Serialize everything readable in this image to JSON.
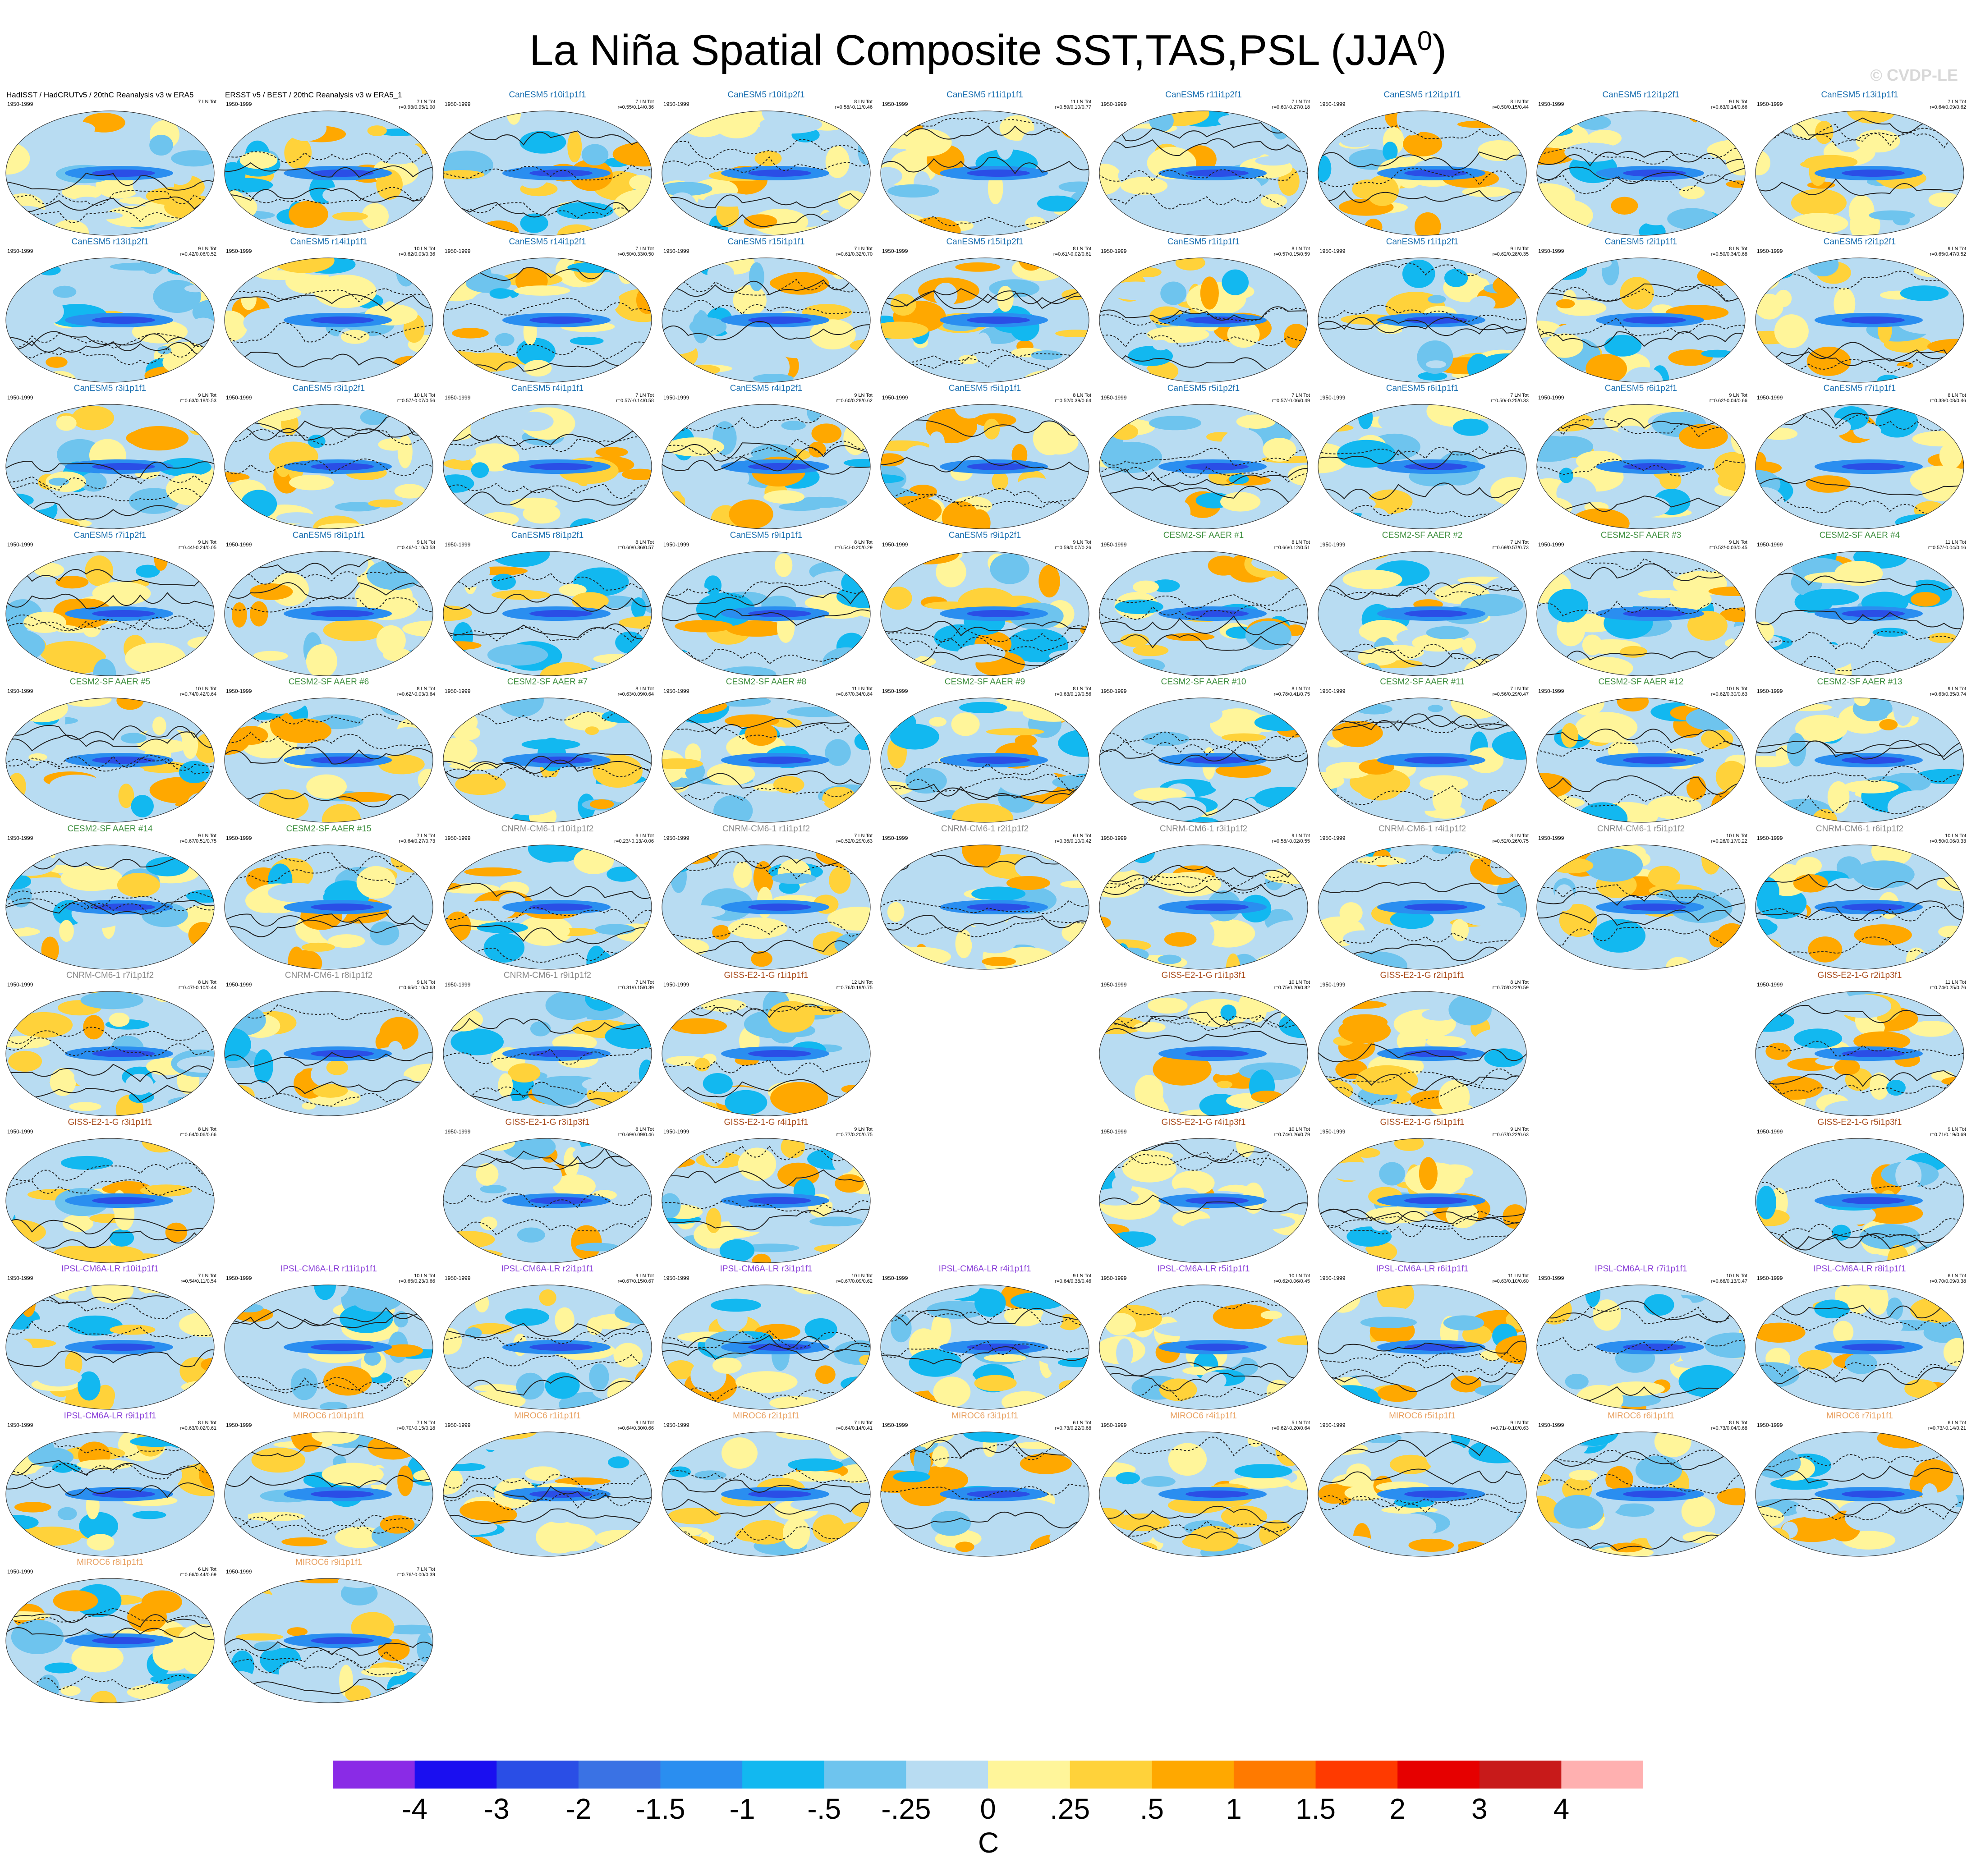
{
  "title": {
    "main": "La Niña Spatial Composite SST,TAS,PSL (JJA",
    "sup": "0",
    "close": ")"
  },
  "watermark": "© CVDP-LE",
  "colors": {
    "obs": "#000000",
    "CanESM5": "#1a6fb0",
    "CESM2-SF AAER": "#3f8f3f",
    "CNRM-CM6-1": "#8a8a8a",
    "GISS-E2-1-G": "#a84a1a",
    "IPSL-CM6A-LR": "#8a40d8",
    "MIROC6": "#e8a060"
  },
  "panels": [
    {
      "title": "HadISST / HadCRUTv5 / 20thC Reanalysis v3 w ERA5",
      "model": "obs",
      "years": "1950-1999",
      "count": "7 LN Tot",
      "stats": ""
    },
    {
      "title": "ERSST v5 / BEST / 20thC Reanalysis v3 w ERA5_1",
      "model": "obs",
      "years": "1950-1999",
      "count": "7 LN Tot",
      "stats": "r=0.93/0.95/1.00"
    },
    {
      "title": "CanESM5 r10i1p1f1",
      "model": "CanESM5",
      "years": "1950-1999",
      "count": "7 LN Tot",
      "stats": "r=0.55/0.14/0.36"
    },
    {
      "title": "CanESM5 r10i1p2f1",
      "model": "CanESM5",
      "years": "1950-1999",
      "count": "8 LN Tot",
      "stats": "r=0.58/-0.11/0.46"
    },
    {
      "title": "CanESM5 r11i1p1f1",
      "model": "CanESM5",
      "years": "1950-1999",
      "count": "11 LN Tot",
      "stats": "r=0.59/0.10/0.77"
    },
    {
      "title": "CanESM5 r11i1p2f1",
      "model": "CanESM5",
      "years": "1950-1999",
      "count": "7 LN Tot",
      "stats": "r=0.60/-0.27/0.18"
    },
    {
      "title": "CanESM5 r12i1p1f1",
      "model": "CanESM5",
      "years": "1950-1999",
      "count": "8 LN Tot",
      "stats": "r=0.50/0.15/0.44"
    },
    {
      "title": "CanESM5 r12i1p2f1",
      "model": "CanESM5",
      "years": "1950-1999",
      "count": "9 LN Tot",
      "stats": "r=0.63/0.14/0.66"
    },
    {
      "title": "CanESM5 r13i1p1f1",
      "model": "CanESM5",
      "years": "1950-1999",
      "count": "7 LN Tot",
      "stats": "r=0.64/0.09/0.62"
    },
    {
      "title": "CanESM5 r13i1p2f1",
      "model": "CanESM5",
      "years": "1950-1999",
      "count": "9 LN Tot",
      "stats": "r=0.42/0.06/0.52"
    },
    {
      "title": "CanESM5 r14i1p1f1",
      "model": "CanESM5",
      "years": "1950-1999",
      "count": "10 LN Tot",
      "stats": "r=0.62/0.03/0.36"
    },
    {
      "title": "CanESM5 r14i1p2f1",
      "model": "CanESM5",
      "years": "1950-1999",
      "count": "7 LN Tot",
      "stats": "r=0.50/0.33/0.50"
    },
    {
      "title": "CanESM5 r15i1p1f1",
      "model": "CanESM5",
      "years": "1950-1999",
      "count": "7 LN Tot",
      "stats": "r=0.61/0.32/0.70"
    },
    {
      "title": "CanESM5 r15i1p2f1",
      "model": "CanESM5",
      "years": "1950-1999",
      "count": "8 LN Tot",
      "stats": "r=0.61/-0.02/0.61"
    },
    {
      "title": "CanESM5 r1i1p1f1",
      "model": "CanESM5",
      "years": "1950-1999",
      "count": "8 LN Tot",
      "stats": "r=0.57/0.15/0.59"
    },
    {
      "title": "CanESM5 r1i1p2f1",
      "model": "CanESM5",
      "years": "1950-1999",
      "count": "9 LN Tot",
      "stats": "r=0.62/0.28/0.35"
    },
    {
      "title": "CanESM5 r2i1p1f1",
      "model": "CanESM5",
      "years": "1950-1999",
      "count": "8 LN Tot",
      "stats": "r=0.50/0.34/0.68"
    },
    {
      "title": "CanESM5 r2i1p2f1",
      "model": "CanESM5",
      "years": "1950-1999",
      "count": "9 LN Tot",
      "stats": "r=0.65/0.47/0.52"
    },
    {
      "title": "CanESM5 r3i1p1f1",
      "model": "CanESM5",
      "years": "1950-1999",
      "count": "9 LN Tot",
      "stats": "r=0.63/0.18/0.53"
    },
    {
      "title": "CanESM5 r3i1p2f1",
      "model": "CanESM5",
      "years": "1950-1999",
      "count": "10 LN Tot",
      "stats": "r=0.57/-0.07/0.56"
    },
    {
      "title": "CanESM5 r4i1p1f1",
      "model": "CanESM5",
      "years": "1950-1999",
      "count": "7 LN Tot",
      "stats": "r=0.57/-0.14/0.58"
    },
    {
      "title": "CanESM5 r4i1p2f1",
      "model": "CanESM5",
      "years": "1950-1999",
      "count": "9 LN Tot",
      "stats": "r=0.60/0.28/0.62"
    },
    {
      "title": "CanESM5 r5i1p1f1",
      "model": "CanESM5",
      "years": "1950-1999",
      "count": "8 LN Tot",
      "stats": "r=0.52/0.39/0.64"
    },
    {
      "title": "CanESM5 r5i1p2f1",
      "model": "CanESM5",
      "years": "1950-1999",
      "count": "7 LN Tot",
      "stats": "r=0.57/-0.06/0.49"
    },
    {
      "title": "CanESM5 r6i1p1f1",
      "model": "CanESM5",
      "years": "1950-1999",
      "count": "7 LN Tot",
      "stats": "r=0.50/-0.25/0.33"
    },
    {
      "title": "CanESM5 r6i1p2f1",
      "model": "CanESM5",
      "years": "1950-1999",
      "count": "9 LN Tot",
      "stats": "r=0.62/-0.04/0.66"
    },
    {
      "title": "CanESM5 r7i1p1f1",
      "model": "CanESM5",
      "years": "1950-1999",
      "count": "8 LN Tot",
      "stats": "r=0.38/0.08/0.46"
    },
    {
      "title": "CanESM5 r7i1p2f1",
      "model": "CanESM5",
      "years": "1950-1999",
      "count": "9 LN Tot",
      "stats": "r=0.44/-0.24/0.05"
    },
    {
      "title": "CanESM5 r8i1p1f1",
      "model": "CanESM5",
      "years": "1950-1999",
      "count": "9 LN Tot",
      "stats": "r=0.46/-0.10/0.58"
    },
    {
      "title": "CanESM5 r8i1p2f1",
      "model": "CanESM5",
      "years": "1950-1999",
      "count": "8 LN Tot",
      "stats": "r=0.60/0.36/0.57"
    },
    {
      "title": "CanESM5 r9i1p1f1",
      "model": "CanESM5",
      "years": "1950-1999",
      "count": "8 LN Tot",
      "stats": "r=0.54/-0.20/0.29"
    },
    {
      "title": "CanESM5 r9i1p2f1",
      "model": "CanESM5",
      "years": "1950-1999",
      "count": "9 LN Tot",
      "stats": "r=0.59/0.07/0.26"
    },
    {
      "title": "CESM2-SF AAER #1",
      "model": "CESM2-SF AAER",
      "years": "1950-1999",
      "count": "8 LN Tot",
      "stats": "r=0.66/0.12/0.51"
    },
    {
      "title": "CESM2-SF AAER #2",
      "model": "CESM2-SF AAER",
      "years": "1950-1999",
      "count": "7 LN Tot",
      "stats": "r=0.69/0.57/0.73"
    },
    {
      "title": "CESM2-SF AAER #3",
      "model": "CESM2-SF AAER",
      "years": "1950-1999",
      "count": "9 LN Tot",
      "stats": "r=0.52/-0.03/0.45"
    },
    {
      "title": "CESM2-SF AAER #4",
      "model": "CESM2-SF AAER",
      "years": "1950-1999",
      "count": "11 LN Tot",
      "stats": "r=0.57/-0.04/0.16"
    },
    {
      "title": "CESM2-SF AAER #5",
      "model": "CESM2-SF AAER",
      "years": "1950-1999",
      "count": "10 LN Tot",
      "stats": "r=0.74/0.42/0.64"
    },
    {
      "title": "CESM2-SF AAER #6",
      "model": "CESM2-SF AAER",
      "years": "1950-1999",
      "count": "8 LN Tot",
      "stats": "r=0.62/-0.03/0.64"
    },
    {
      "title": "CESM2-SF AAER #7",
      "model": "CESM2-SF AAER",
      "years": "1950-1999",
      "count": "8 LN Tot",
      "stats": "r=0.63/0.09/0.64"
    },
    {
      "title": "CESM2-SF AAER #8",
      "model": "CESM2-SF AAER",
      "years": "1950-1999",
      "count": "11 LN Tot",
      "stats": "r=0.67/0.34/0.84"
    },
    {
      "title": "CESM2-SF AAER #9",
      "model": "CESM2-SF AAER",
      "years": "1950-1999",
      "count": "8 LN Tot",
      "stats": "r=0.63/0.19/0.56"
    },
    {
      "title": "CESM2-SF AAER #10",
      "model": "CESM2-SF AAER",
      "years": "1950-1999",
      "count": "8 LN Tot",
      "stats": "r=0.78/0.41/0.75"
    },
    {
      "title": "CESM2-SF AAER #11",
      "model": "CESM2-SF AAER",
      "years": "1950-1999",
      "count": "7 LN Tot",
      "stats": "r=0.56/0.29/0.47"
    },
    {
      "title": "CESM2-SF AAER #12",
      "model": "CESM2-SF AAER",
      "years": "1950-1999",
      "count": "10 LN Tot",
      "stats": "r=0.62/0.30/0.63"
    },
    {
      "title": "CESM2-SF AAER #13",
      "model": "CESM2-SF AAER",
      "years": "1950-1999",
      "count": "9 LN Tot",
      "stats": "r=0.63/0.35/0.74"
    },
    {
      "title": "CESM2-SF AAER #14",
      "model": "CESM2-SF AAER",
      "years": "1950-1999",
      "count": "9 LN Tot",
      "stats": "r=0.67/0.51/0.75"
    },
    {
      "title": "CESM2-SF AAER #15",
      "model": "CESM2-SF AAER",
      "years": "1950-1999",
      "count": "7 LN Tot",
      "stats": "r=0.64/0.27/0.73"
    },
    {
      "title": "CNRM-CM6-1 r10i1p1f2",
      "model": "CNRM-CM6-1",
      "years": "1950-1999",
      "count": "6 LN Tot",
      "stats": "r=0.23/-0.13/-0.06"
    },
    {
      "title": "CNRM-CM6-1 r1i1p1f2",
      "model": "CNRM-CM6-1",
      "years": "1950-1999",
      "count": "7 LN Tot",
      "stats": "r=0.52/0.29/0.63"
    },
    {
      "title": "CNRM-CM6-1 r2i1p1f2",
      "model": "CNRM-CM6-1",
      "years": "1950-1999",
      "count": "6 LN Tot",
      "stats": "r=0.35/0.10/0.42"
    },
    {
      "title": "CNRM-CM6-1 r3i1p1f2",
      "model": "CNRM-CM6-1",
      "years": "1950-1999",
      "count": "9 LN Tot",
      "stats": "r=0.58/-0.02/0.55"
    },
    {
      "title": "CNRM-CM6-1 r4i1p1f2",
      "model": "CNRM-CM6-1",
      "years": "1950-1999",
      "count": "8 LN Tot",
      "stats": "r=0.52/0.26/0.75"
    },
    {
      "title": "CNRM-CM6-1 r5i1p1f2",
      "model": "CNRM-CM6-1",
      "years": "1950-1999",
      "count": "10 LN Tot",
      "stats": "r=0.26/0.17/0.22"
    },
    {
      "title": "CNRM-CM6-1 r6i1p1f2",
      "model": "CNRM-CM6-1",
      "years": "1950-1999",
      "count": "10 LN Tot",
      "stats": "r=0.50/0.06/0.33"
    },
    {
      "title": "CNRM-CM6-1 r7i1p1f2",
      "model": "CNRM-CM6-1",
      "years": "1950-1999",
      "count": "8 LN Tot",
      "stats": "r=0.47/-0.10/0.44"
    },
    {
      "title": "CNRM-CM6-1 r8i1p1f2",
      "model": "CNRM-CM6-1",
      "years": "1950-1999",
      "count": "9 LN Tot",
      "stats": "r=0.65/0.10/0.63"
    },
    {
      "title": "CNRM-CM6-1 r9i1p1f2",
      "model": "CNRM-CM6-1",
      "years": "1950-1999",
      "count": "7 LN Tot",
      "stats": "r=0.31/0.15/0.39"
    },
    {
      "title": "GISS-E2-1-G r1i1p1f1",
      "model": "GISS-E2-1-G",
      "years": "1950-1999",
      "count": "12 LN Tot",
      "stats": "r=0.76/0.19/0.75"
    },
    null,
    {
      "title": "GISS-E2-1-G r1i1p3f1",
      "model": "GISS-E2-1-G",
      "years": "1950-1999",
      "count": "10 LN Tot",
      "stats": "r=0.75/0.20/0.82"
    },
    {
      "title": "GISS-E2-1-G r2i1p1f1",
      "model": "GISS-E2-1-G",
      "years": "1950-1999",
      "count": "8 LN Tot",
      "stats": "r=0.70/0.22/0.59"
    },
    null,
    {
      "title": "GISS-E2-1-G r2i1p3f1",
      "model": "GISS-E2-1-G",
      "years": "1950-1999",
      "count": "11 LN Tot",
      "stats": "r=0.74/0.25/0.76"
    },
    {
      "title": "GISS-E2-1-G r3i1p1f1",
      "model": "GISS-E2-1-G",
      "years": "1950-1999",
      "count": "8 LN Tot",
      "stats": "r=0.64/0.06/0.66"
    },
    null,
    {
      "title": "GISS-E2-1-G r3i1p3f1",
      "model": "GISS-E2-1-G",
      "years": "1950-1999",
      "count": "8 LN Tot",
      "stats": "r=0.69/0.09/0.46"
    },
    {
      "title": "GISS-E2-1-G r4i1p1f1",
      "model": "GISS-E2-1-G",
      "years": "1950-1999",
      "count": "9 LN Tot",
      "stats": "r=0.77/0.20/0.75"
    },
    null,
    {
      "title": "GISS-E2-1-G r4i1p3f1",
      "model": "GISS-E2-1-G",
      "years": "1950-1999",
      "count": "10 LN Tot",
      "stats": "r=0.74/0.26/0.79"
    },
    {
      "title": "GISS-E2-1-G r5i1p1f1",
      "model": "GISS-E2-1-G",
      "years": "1950-1999",
      "count": "9 LN Tot",
      "stats": "r=0.67/0.22/0.63"
    },
    null,
    {
      "title": "GISS-E2-1-G r5i1p3f1",
      "model": "GISS-E2-1-G",
      "years": "1950-1999",
      "count": "9 LN Tot",
      "stats": "r=0.71/0.19/0.69"
    },
    {
      "title": "IPSL-CM6A-LR r10i1p1f1",
      "model": "IPSL-CM6A-LR",
      "years": "1950-1999",
      "count": "7 LN Tot",
      "stats": "r=0.54/0.11/0.54"
    },
    {
      "title": "IPSL-CM6A-LR r11i1p1f1",
      "model": "IPSL-CM6A-LR",
      "years": "1950-1999",
      "count": "10 LN Tot",
      "stats": "r=0.65/0.23/0.66"
    },
    {
      "title": "IPSL-CM6A-LR r2i1p1f1",
      "model": "IPSL-CM6A-LR",
      "years": "1950-1999",
      "count": "9 LN Tot",
      "stats": "r=0.67/0.15/0.67"
    },
    {
      "title": "IPSL-CM6A-LR r3i1p1f1",
      "model": "IPSL-CM6A-LR",
      "years": "1950-1999",
      "count": "10 LN Tot",
      "stats": "r=0.67/0.09/0.62"
    },
    {
      "title": "IPSL-CM6A-LR r4i1p1f1",
      "model": "IPSL-CM6A-LR",
      "years": "1950-1999",
      "count": "9 LN Tot",
      "stats": "r=0.64/0.38/0.46"
    },
    {
      "title": "IPSL-CM6A-LR r5i1p1f1",
      "model": "IPSL-CM6A-LR",
      "years": "1950-1999",
      "count": "10 LN Tot",
      "stats": "r=0.62/0.06/0.45"
    },
    {
      "title": "IPSL-CM6A-LR r6i1p1f1",
      "model": "IPSL-CM6A-LR",
      "years": "1950-1999",
      "count": "11 LN Tot",
      "stats": "r=0.63/0.10/0.60"
    },
    {
      "title": "IPSL-CM6A-LR r7i1p1f1",
      "model": "IPSL-CM6A-LR",
      "years": "1950-1999",
      "count": "10 LN Tot",
      "stats": "r=0.66/0.13/0.47"
    },
    {
      "title": "IPSL-CM6A-LR r8i1p1f1",
      "model": "IPSL-CM6A-LR",
      "years": "1950-1999",
      "count": "6 LN Tot",
      "stats": "r=0.70/0.09/0.38"
    },
    {
      "title": "IPSL-CM6A-LR r9i1p1f1",
      "model": "IPSL-CM6A-LR",
      "years": "1950-1999",
      "count": "8 LN Tot",
      "stats": "r=0.63/0.02/0.61"
    },
    {
      "title": "MIROC6 r10i1p1f1",
      "model": "MIROC6",
      "years": "1950-1999",
      "count": "7 LN Tot",
      "stats": "r=0.70/-0.15/0.18"
    },
    {
      "title": "MIROC6 r1i1p1f1",
      "model": "MIROC6",
      "years": "1950-1999",
      "count": "9 LN Tot",
      "stats": "r=0.64/0.30/0.66"
    },
    {
      "title": "MIROC6 r2i1p1f1",
      "model": "MIROC6",
      "years": "1950-1999",
      "count": "7 LN Tot",
      "stats": "r=0.64/0.14/0.41"
    },
    {
      "title": "MIROC6 r3i1p1f1",
      "model": "MIROC6",
      "years": "1950-1999",
      "count": "6 LN Tot",
      "stats": "r=0.73/0.22/0.68"
    },
    {
      "title": "MIROC6 r4i1p1f1",
      "model": "MIROC6",
      "years": "1950-1999",
      "count": "5 LN Tot",
      "stats": "r=0.62/-0.20/0.64"
    },
    {
      "title": "MIROC6 r5i1p1f1",
      "model": "MIROC6",
      "years": "1950-1999",
      "count": "9 LN Tot",
      "stats": "r=0.71/-0.10/0.63"
    },
    {
      "title": "MIROC6 r6i1p1f1",
      "model": "MIROC6",
      "years": "1950-1999",
      "count": "8 LN Tot",
      "stats": "r=0.73/0.04/0.68"
    },
    {
      "title": "MIROC6 r7i1p1f1",
      "model": "MIROC6",
      "years": "1950-1999",
      "count": "6 LN Tot",
      "stats": "r=0.73/-0.14/0.21"
    },
    {
      "title": "MIROC6 r8i1p1f1",
      "model": "MIROC6",
      "years": "1950-1999",
      "count": "6 LN Tot",
      "stats": "r=0.66/0.44/0.69"
    },
    {
      "title": "MIROC6 r9i1p1f1",
      "model": "MIROC6",
      "years": "1950-1999",
      "count": "7 LN Tot",
      "stats": "r=0.76/-0.00/0.39"
    }
  ],
  "chart_data": {
    "type": "heatmap",
    "colorbar": {
      "labels": [
        "-4",
        "-3",
        "-2",
        "-1.5",
        "-1",
        "-.5",
        "-.25",
        "0",
        ".25",
        ".5",
        "1",
        "1.5",
        "2",
        "3",
        "4"
      ],
      "colors": [
        "#8a2be6",
        "#1a0ff0",
        "#2a4ee6",
        "#3a72e4",
        "#2a8ef0",
        "#12b8f0",
        "#6ec4ee",
        "#b8dcf2",
        "#fff59a",
        "#ffd23a",
        "#ffa800",
        "#ff7a00",
        "#ff3a00",
        "#e60000",
        "#c81a1a",
        "#ffb0b0"
      ],
      "units": "C"
    }
  }
}
